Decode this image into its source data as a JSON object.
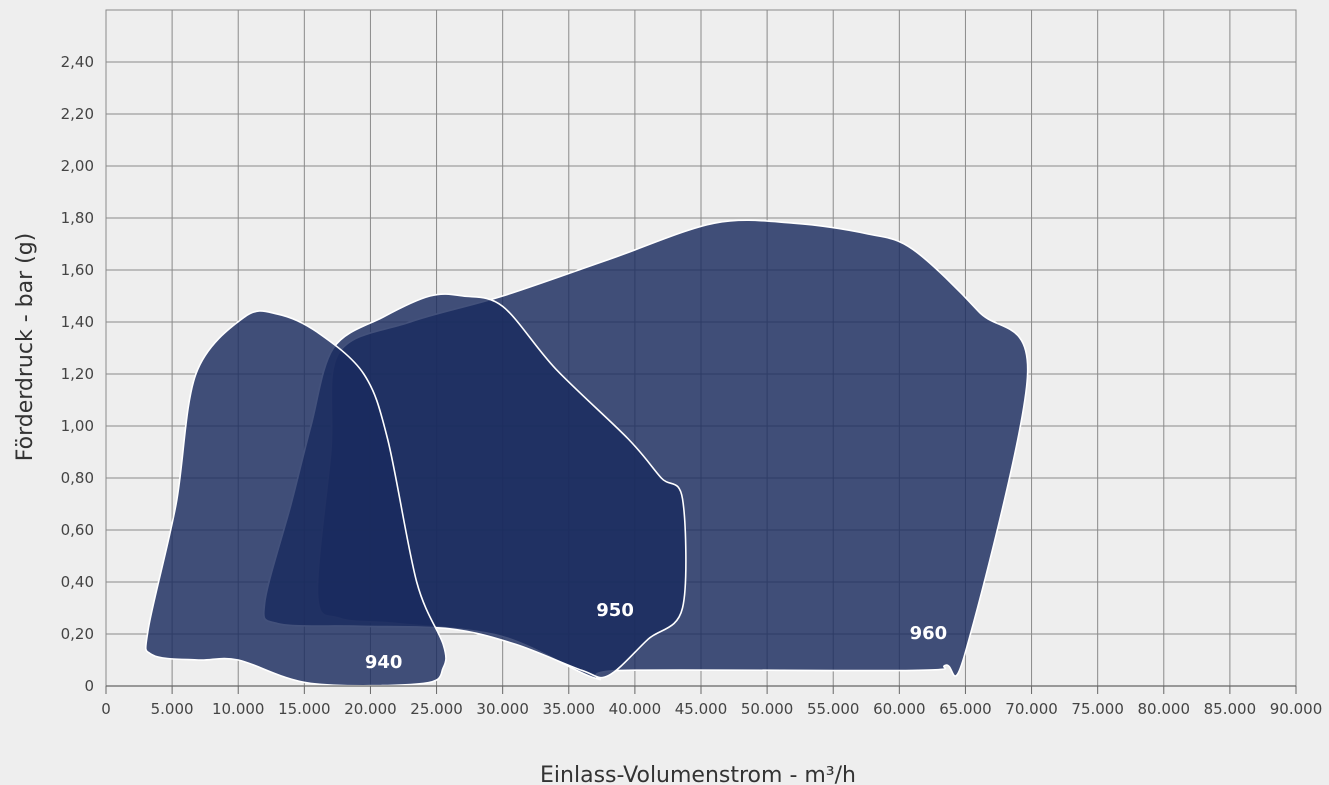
{
  "chart_data": {
    "type": "area",
    "title": "",
    "xlabel": "Einlass-Volumenstrom - m³/h",
    "ylabel": "Förderdruck - bar (g)",
    "xlim": [
      0,
      90000
    ],
    "ylim": [
      0,
      2.4
    ],
    "grid": true,
    "region_color": "#1a2b5e",
    "x_ticks": [
      {
        "value": 0,
        "label": "0"
      },
      {
        "value": 5000,
        "label": "5.000"
      },
      {
        "value": 10000,
        "label": "10.000"
      },
      {
        "value": 15000,
        "label": "15.000"
      },
      {
        "value": 20000,
        "label": "20.000"
      },
      {
        "value": 25000,
        "label": "25.000"
      },
      {
        "value": 30000,
        "label": "30.000"
      },
      {
        "value": 35000,
        "label": "35.000"
      },
      {
        "value": 40000,
        "label": "40.000"
      },
      {
        "value": 45000,
        "label": "45.000"
      },
      {
        "value": 50000,
        "label": "50.000"
      },
      {
        "value": 55000,
        "label": "55.000"
      },
      {
        "value": 60000,
        "label": "60.000"
      },
      {
        "value": 65000,
        "label": "65.000"
      },
      {
        "value": 70000,
        "label": "70.000"
      },
      {
        "value": 75000,
        "label": "75.000"
      },
      {
        "value": 80000,
        "label": "80.000"
      },
      {
        "value": 85000,
        "label": "85.000"
      },
      {
        "value": 90000,
        "label": "90.000"
      }
    ],
    "y_ticks": [
      {
        "value": 0,
        "label": "0"
      },
      {
        "value": 0.2,
        "label": "0,20"
      },
      {
        "value": 0.4,
        "label": "0,40"
      },
      {
        "value": 0.6,
        "label": "0,60"
      },
      {
        "value": 0.8,
        "label": "0,80"
      },
      {
        "value": 1.0,
        "label": "1,00"
      },
      {
        "value": 1.2,
        "label": "1,20"
      },
      {
        "value": 1.4,
        "label": "1,40"
      },
      {
        "value": 1.6,
        "label": "1,60"
      },
      {
        "value": 1.8,
        "label": "1,80"
      },
      {
        "value": 2.0,
        "label": "2,00"
      },
      {
        "value": 2.2,
        "label": "2,20"
      },
      {
        "value": 2.4,
        "label": "2,40"
      }
    ],
    "series": [
      {
        "name": "960",
        "label_at": [
          62200,
          0.18
        ],
        "points": [
          [
            17600,
            1.28
          ],
          [
            23000,
            1.4
          ],
          [
            30000,
            1.5
          ],
          [
            38000,
            1.64
          ],
          [
            46000,
            1.78
          ],
          [
            52000,
            1.78
          ],
          [
            57500,
            1.74
          ],
          [
            61000,
            1.68
          ],
          [
            66000,
            1.44
          ],
          [
            69700,
            1.2
          ],
          [
            65000,
            0.13
          ],
          [
            63500,
            0.08
          ],
          [
            61000,
            0.06
          ],
          [
            39000,
            0.06
          ],
          [
            37000,
            0.03
          ],
          [
            30000,
            0.19
          ],
          [
            22000,
            0.24
          ],
          [
            17700,
            0.26
          ],
          [
            16000,
            0.35
          ],
          [
            17000,
            0.9
          ]
        ]
      },
      {
        "name": "950",
        "label_at": [
          38500,
          0.27
        ],
        "points": [
          [
            17200,
            1.3
          ],
          [
            21000,
            1.42
          ],
          [
            24500,
            1.5
          ],
          [
            27000,
            1.5
          ],
          [
            30000,
            1.46
          ],
          [
            34000,
            1.22
          ],
          [
            39500,
            0.95
          ],
          [
            42000,
            0.8
          ],
          [
            43600,
            0.72
          ],
          [
            43600,
            0.3
          ],
          [
            41000,
            0.18
          ],
          [
            38000,
            0.04
          ],
          [
            36000,
            0.06
          ],
          [
            31000,
            0.16
          ],
          [
            26000,
            0.22
          ],
          [
            19000,
            0.23
          ],
          [
            13000,
            0.24
          ],
          [
            12000,
            0.32
          ],
          [
            14000,
            0.7
          ],
          [
            15500,
            1.0
          ]
        ]
      },
      {
        "name": "940",
        "label_at": [
          21000,
          0.07
        ],
        "points": [
          [
            6800,
            1.2
          ],
          [
            10500,
            1.42
          ],
          [
            13000,
            1.43
          ],
          [
            16000,
            1.36
          ],
          [
            19500,
            1.2
          ],
          [
            21300,
            0.95
          ],
          [
            23500,
            0.4
          ],
          [
            25500,
            0.16
          ],
          [
            25500,
            0.07
          ],
          [
            24000,
            0.01
          ],
          [
            15500,
            0.01
          ],
          [
            10000,
            0.1
          ],
          [
            7000,
            0.1
          ],
          [
            3500,
            0.12
          ],
          [
            3200,
            0.22
          ],
          [
            5300,
            0.7
          ]
        ]
      }
    ]
  }
}
